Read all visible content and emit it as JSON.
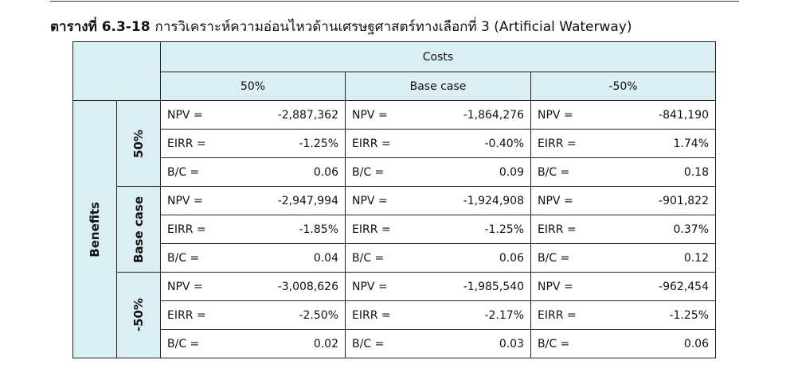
{
  "title": {
    "label": "ตารางที่ 6.3-18",
    "text": "การวิเคราะห์ความอ่อนไหวด้านเศรษฐศาสตร์ทางเลือกที่ 3 (Artificial Waterway)"
  },
  "table": {
    "header": "Costs",
    "columns": [
      "50%",
      "Base case",
      "-50%"
    ],
    "row_header": "Benefits",
    "groups": [
      {
        "name": "50%",
        "rows": [
          [
            {
              "label": "NPV =",
              "value": "-2,887,362"
            },
            {
              "label": "NPV =",
              "value": "-1,864,276"
            },
            {
              "label": "NPV =",
              "value": "-841,190"
            }
          ],
          [
            {
              "label": "EIRR =",
              "value": "-1.25%"
            },
            {
              "label": "EIRR =",
              "value": "-0.40%"
            },
            {
              "label": "EIRR =",
              "value": "1.74%"
            }
          ],
          [
            {
              "label": "B/C =",
              "value": "0.06"
            },
            {
              "label": "B/C =",
              "value": "0.09"
            },
            {
              "label": "B/C =",
              "value": "0.18"
            }
          ]
        ]
      },
      {
        "name": "Base case",
        "rows": [
          [
            {
              "label": "NPV =",
              "value": "-2,947,994"
            },
            {
              "label": "NPV =",
              "value": "-1,924,908"
            },
            {
              "label": "NPV =",
              "value": "-901,822"
            }
          ],
          [
            {
              "label": "EIRR =",
              "value": "-1.85%"
            },
            {
              "label": "EIRR =",
              "value": "-1.25%"
            },
            {
              "label": "EIRR =",
              "value": "0.37%"
            }
          ],
          [
            {
              "label": "B/C =",
              "value": "0.04"
            },
            {
              "label": "B/C =",
              "value": "0.06"
            },
            {
              "label": "B/C =",
              "value": "0.12"
            }
          ]
        ]
      },
      {
        "name": "-50%",
        "rows": [
          [
            {
              "label": "NPV =",
              "value": "-3,008,626"
            },
            {
              "label": "NPV =",
              "value": "-1,985,540"
            },
            {
              "label": "NPV =",
              "value": "-962,454"
            }
          ],
          [
            {
              "label": "EIRR =",
              "value": "-2.50%"
            },
            {
              "label": "EIRR =",
              "value": "-2.17%"
            },
            {
              "label": "EIRR =",
              "value": "-1.25%"
            }
          ],
          [
            {
              "label": "B/C =",
              "value": "0.02"
            },
            {
              "label": "B/C =",
              "value": "0.03"
            },
            {
              "label": "B/C =",
              "value": "0.06"
            }
          ]
        ]
      }
    ]
  }
}
